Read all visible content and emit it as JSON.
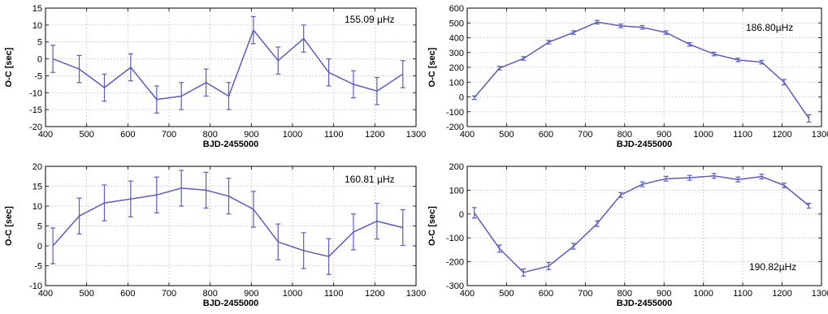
{
  "chart_data": [
    {
      "type": "line",
      "annotation": "155.09 µHz",
      "xlabel": "BJD-2455000",
      "ylabel": "O-C [sec]",
      "xlim": [
        400,
        1300
      ],
      "ylim": [
        -20,
        15
      ],
      "xticks": [
        400,
        500,
        600,
        700,
        800,
        900,
        1000,
        1100,
        1200,
        1300
      ],
      "yticks": [
        -20,
        -15,
        -10,
        -5,
        0,
        5,
        10,
        15
      ],
      "grid": true,
      "color": "#5a5cc0",
      "series": [
        {
          "x": [
            418,
            482,
            543,
            607,
            670,
            730,
            790,
            845,
            905,
            965,
            1027,
            1088,
            1148,
            1205,
            1268
          ],
          "y": [
            0,
            -3,
            -8.5,
            -2.5,
            -12,
            -11,
            -7,
            -11,
            8.5,
            -0.5,
            6,
            -4,
            -7.5,
            -9.5,
            -4.5
          ],
          "err": [
            4,
            4,
            4,
            4,
            4,
            4,
            4,
            4,
            4,
            4,
            4,
            4,
            4,
            4,
            4
          ]
        }
      ]
    },
    {
      "type": "line",
      "annotation": "186.80µHz",
      "xlabel": "BJD-2455000",
      "ylabel": "O-C [sec]",
      "xlim": [
        400,
        1300
      ],
      "ylim": [
        -200,
        600
      ],
      "xticks": [
        400,
        500,
        600,
        700,
        800,
        900,
        1000,
        1100,
        1200,
        1300
      ],
      "yticks": [
        -200,
        -100,
        0,
        100,
        200,
        300,
        400,
        500,
        600
      ],
      "grid": true,
      "color": "#5a5cc0",
      "series": [
        {
          "x": [
            418,
            482,
            543,
            607,
            670,
            730,
            790,
            845,
            905,
            965,
            1027,
            1088,
            1148,
            1205,
            1268
          ],
          "y": [
            -5,
            195,
            260,
            370,
            435,
            505,
            480,
            470,
            435,
            355,
            290,
            250,
            235,
            100,
            -145
          ],
          "err": [
            12,
            12,
            12,
            12,
            12,
            12,
            12,
            12,
            12,
            12,
            12,
            12,
            12,
            18,
            25
          ]
        }
      ]
    },
    {
      "type": "line",
      "annotation": "160.81 µHz",
      "xlabel": "BJD-2455000",
      "ylabel": "O-C [sec]",
      "xlim": [
        400,
        1300
      ],
      "ylim": [
        -10,
        20
      ],
      "xticks": [
        400,
        500,
        600,
        700,
        800,
        900,
        1000,
        1100,
        1200,
        1300
      ],
      "yticks": [
        -10,
        -5,
        0,
        5,
        10,
        15,
        20
      ],
      "grid": true,
      "color": "#5a5cc0",
      "series": [
        {
          "x": [
            418,
            482,
            543,
            607,
            670,
            730,
            790,
            845,
            905,
            965,
            1027,
            1088,
            1148,
            1205,
            1268
          ],
          "y": [
            0,
            7.5,
            10.8,
            11.8,
            12.8,
            14.5,
            14,
            12.5,
            9.2,
            1,
            -1.2,
            -2.7,
            3.5,
            6.2,
            4.6
          ],
          "err": [
            4.5,
            4.5,
            4.5,
            4.5,
            4.5,
            4.5,
            4.5,
            4.5,
            4.5,
            4.5,
            4.5,
            4.5,
            4.5,
            4.5,
            4.5
          ]
        }
      ]
    },
    {
      "type": "line",
      "annotation": "190.82µHz",
      "xlabel": "BJD-2455000",
      "ylabel": "O-C [sec]",
      "xlim": [
        400,
        1300
      ],
      "ylim": [
        -300,
        200
      ],
      "xticks": [
        400,
        500,
        600,
        700,
        800,
        900,
        1000,
        1100,
        1200,
        1300
      ],
      "yticks": [
        -300,
        -200,
        -100,
        0,
        100,
        200
      ],
      "grid": true,
      "color": "#5a5cc0",
      "series": [
        {
          "x": [
            418,
            482,
            543,
            607,
            670,
            730,
            790,
            845,
            905,
            965,
            1027,
            1088,
            1148,
            1205,
            1268
          ],
          "y": [
            5,
            -145,
            -245,
            -218,
            -135,
            -40,
            80,
            125,
            148,
            152,
            160,
            145,
            157,
            120,
            35
          ],
          "err": [
            22,
            15,
            15,
            15,
            12,
            12,
            10,
            10,
            10,
            10,
            10,
            10,
            10,
            10,
            10
          ]
        }
      ]
    }
  ]
}
